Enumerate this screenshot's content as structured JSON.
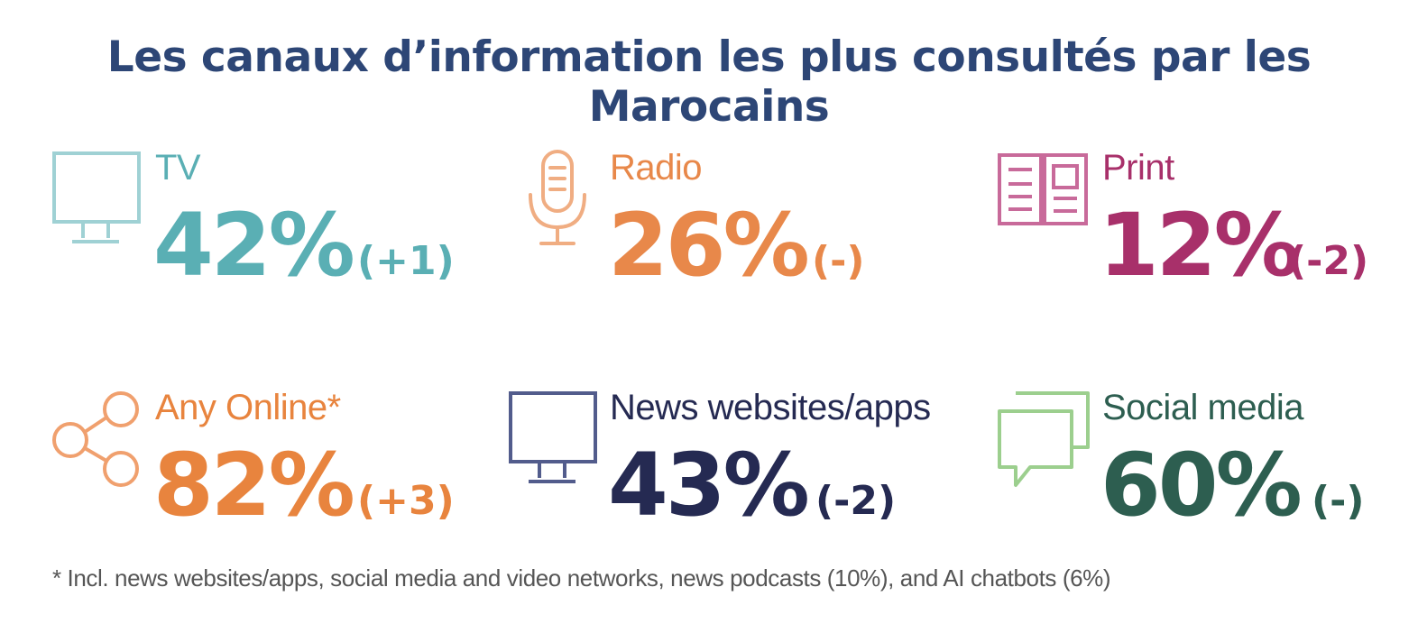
{
  "title": "Les canaux d’information les plus consultés par les Marocains",
  "footnote": "* Incl. news websites/apps, social media and video networks, news podcasts (10%), and AI chatbots (6%)",
  "chart_data": {
    "type": "table",
    "unit": "%",
    "items": [
      {
        "label": "TV",
        "value": 42,
        "display": "42%",
        "change": "(+1)",
        "color": "#5aafb4",
        "icon": "tv-icon"
      },
      {
        "label": "Radio",
        "value": 26,
        "display": "26%",
        "change": "(-)",
        "color": "#e8884a",
        "icon": "microphone-icon"
      },
      {
        "label": "Print",
        "value": 12,
        "display": "12%",
        "change": "(-2)",
        "color": "#a8306a",
        "icon": "newspaper-icon"
      },
      {
        "label": "Any Online*",
        "value": 82,
        "display": "82%",
        "change": "(+3)",
        "color": "#e8843e",
        "icon": "share-icon"
      },
      {
        "label": "News websites/apps",
        "value": 43,
        "display": "43%",
        "change": "(-2)",
        "color": "#252a52",
        "icon": "monitor-icon"
      },
      {
        "label": "Social media",
        "value": 60,
        "display": "60%",
        "change": "(-)",
        "color": "#2d5e50",
        "icon": "chat-bubbles-icon"
      }
    ]
  }
}
